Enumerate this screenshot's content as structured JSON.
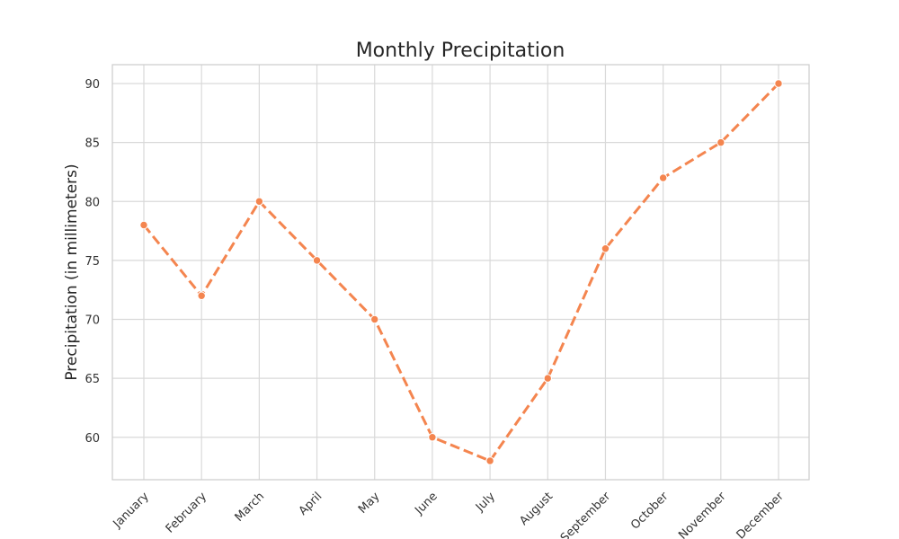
{
  "chart_data": {
    "type": "line",
    "title": "Monthly Precipitation",
    "xlabel": "",
    "ylabel": "Precipitation (in millimeters)",
    "categories": [
      "January",
      "February",
      "March",
      "April",
      "May",
      "June",
      "July",
      "August",
      "September",
      "October",
      "November",
      "December"
    ],
    "series": [
      {
        "values": [
          78,
          72,
          80,
          75,
          70,
          60,
          58,
          65,
          76,
          82,
          85,
          90
        ],
        "color": "#f4854f",
        "line_style": "dashed",
        "marker": "circle"
      }
    ],
    "ylim": [
      56.4,
      91.6
    ],
    "yticks": [
      60,
      65,
      70,
      75,
      80,
      85,
      90
    ],
    "grid": true,
    "legend": "none",
    "gridline_color": "#d9d9d9",
    "axis_color": "#cccccc"
  }
}
